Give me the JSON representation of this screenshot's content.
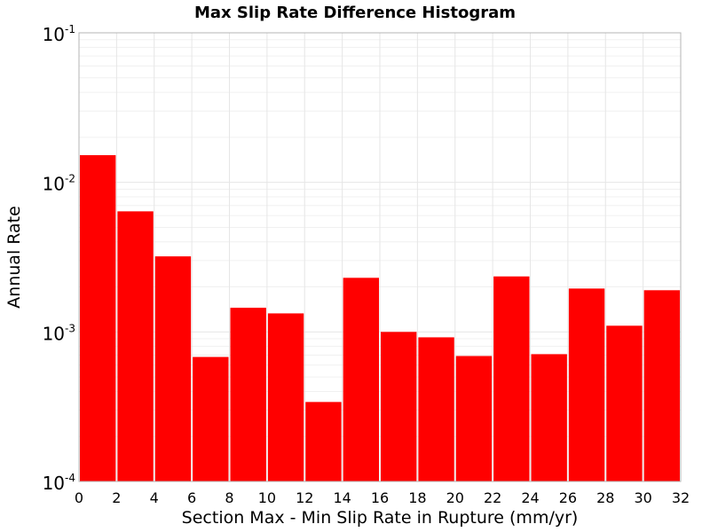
{
  "chart_data": {
    "type": "bar",
    "title": "Max Slip Rate Difference Histogram",
    "xlabel": "Section Max - Min Slip Rate in Rupture (mm/yr)",
    "ylabel": "Annual Rate",
    "xlim": [
      0,
      32
    ],
    "ylim": [
      0.0001,
      0.1
    ],
    "yscale": "log",
    "grid": true,
    "bar_color": "#ff0000",
    "xticks": [
      "0",
      "2",
      "4",
      "6",
      "8",
      "10",
      "12",
      "14",
      "16",
      "18",
      "20",
      "22",
      "24",
      "26",
      "28",
      "30",
      "32"
    ],
    "yticks": [
      {
        "base": "10",
        "exp": "-4"
      },
      {
        "base": "10",
        "exp": "-3"
      },
      {
        "base": "10",
        "exp": "-2"
      },
      {
        "base": "10",
        "exp": "-1"
      }
    ],
    "bins": [
      {
        "x0": 0,
        "x1": 2,
        "value": 0.0152
      },
      {
        "x0": 2,
        "x1": 4,
        "value": 0.0064
      },
      {
        "x0": 4,
        "x1": 6,
        "value": 0.0032
      },
      {
        "x0": 6,
        "x1": 8,
        "value": 0.00068
      },
      {
        "x0": 8,
        "x1": 10,
        "value": 0.00145
      },
      {
        "x0": 10,
        "x1": 12,
        "value": 0.00133
      },
      {
        "x0": 12,
        "x1": 14,
        "value": 0.00034
      },
      {
        "x0": 14,
        "x1": 16,
        "value": 0.0023
      },
      {
        "x0": 16,
        "x1": 18,
        "value": 0.001
      },
      {
        "x0": 18,
        "x1": 20,
        "value": 0.00092
      },
      {
        "x0": 20,
        "x1": 22,
        "value": 0.00069
      },
      {
        "x0": 22,
        "x1": 24,
        "value": 0.00235
      },
      {
        "x0": 24,
        "x1": 26,
        "value": 0.00071
      },
      {
        "x0": 26,
        "x1": 28,
        "value": 0.00195
      },
      {
        "x0": 28,
        "x1": 30,
        "value": 0.0011
      },
      {
        "x0": 30,
        "x1": 32,
        "value": 0.0019
      }
    ]
  }
}
